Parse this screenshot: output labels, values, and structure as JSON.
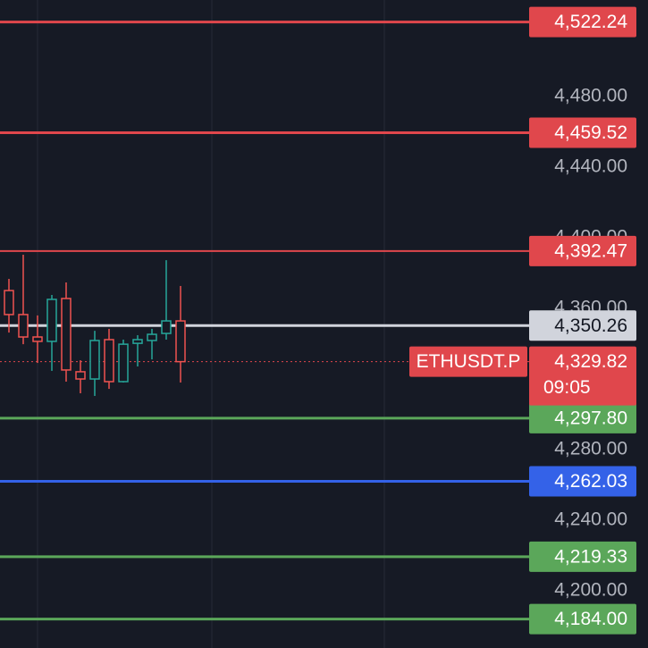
{
  "chart_data": {
    "type": "candlestick",
    "categories": [
      null,
      null,
      null,
      null,
      null,
      null,
      null,
      null,
      null,
      null,
      null,
      null,
      null
    ],
    "open": [
      4370.1,
      4356.5,
      4343.8,
      4341.3,
      4365.6,
      4324.1,
      4320.0,
      4342.3,
      4318.5,
      4340.2,
      4341.8,
      4345.8,
      4352.9
    ],
    "high": [
      4376.7,
      4390.4,
      4356.0,
      4367.6,
      4374.7,
      4330.6,
      4347.3,
      4348.4,
      4342.3,
      4344.8,
      4348.4,
      4387.3,
      4372.7
    ],
    "low": [
      4346.3,
      4339.7,
      4329.1,
      4324.6,
      4318.5,
      4311.9,
      4310.4,
      4314.4,
      4318.0,
      4327.1,
      4331.1,
      4342.3,
      4318.0
    ],
    "close": [
      4356.5,
      4343.8,
      4341.3,
      4365.1,
      4325.1,
      4320.0,
      4341.8,
      4318.5,
      4339.7,
      4342.3,
      4345.3,
      4352.9,
      4329.82
    ],
    "up_color": "#26a69a",
    "down_color": "#ef5350",
    "ylim": [
      4167.6,
      4534.7
    ],
    "yticks": [
      {
        "value": 4480,
        "label": "4,480.00"
      },
      {
        "value": 4440,
        "label": "4,440.00"
      },
      {
        "value": 4400,
        "label": "4,400.00"
      },
      {
        "value": 4360,
        "label": "4,360.00"
      },
      {
        "value": 4280,
        "label": "4,280.00"
      },
      {
        "value": 4240,
        "label": "4,240.00"
      },
      {
        "value": 4200,
        "label": "4,200.00"
      }
    ],
    "price_lines": [
      {
        "value": 4522.24,
        "label": "4,522.24",
        "color": "#e0474c"
      },
      {
        "value": 4459.52,
        "label": "4,459.52",
        "color": "#e0474c"
      },
      {
        "value": 4392.47,
        "label": "4,392.47",
        "color": "#e0474c"
      },
      {
        "value": 4350.26,
        "label": "4,350.26",
        "color": "#d1d4dc"
      },
      {
        "value": 4297.8,
        "label": "4,297.80",
        "color": "#5ba75a"
      },
      {
        "value": 4262.03,
        "label": "4,262.03",
        "color": "#3462e8"
      },
      {
        "value": 4219.33,
        "label": "4,219.33",
        "color": "#5ba75a"
      },
      {
        "value": 4184.0,
        "label": "4,184.00",
        "color": "#5ba75a"
      }
    ],
    "last_price": {
      "value": 4329.82,
      "label": "4,329.82",
      "symbol": "ETHUSDT.P",
      "countdown": "09:05",
      "color": "#e0474c"
    }
  }
}
